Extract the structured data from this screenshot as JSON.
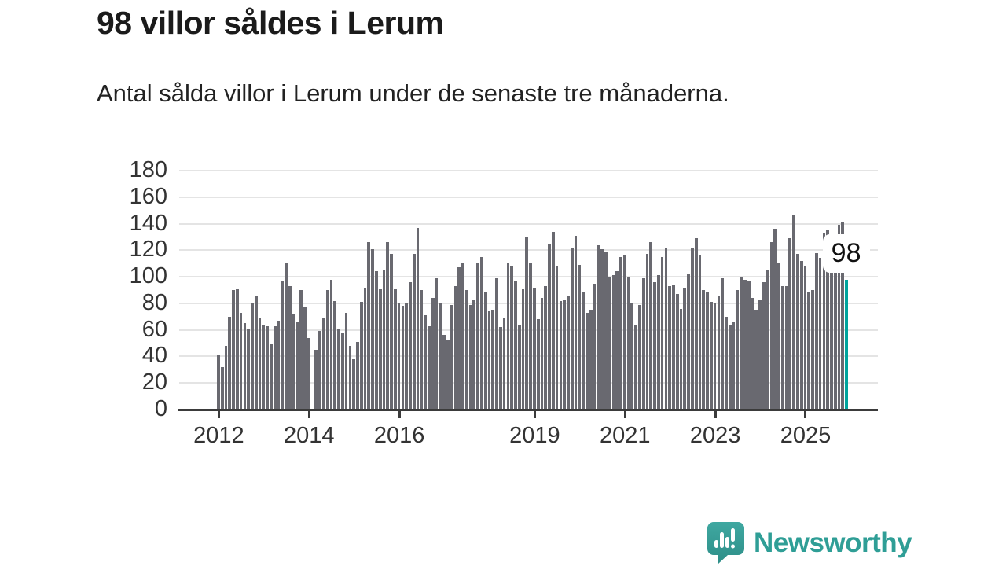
{
  "header": {
    "title": "98 villor såldes i Lerum",
    "subtitle": "Antal sålda villor i Lerum under de senaste tre månaderna."
  },
  "chart_data": {
    "type": "bar",
    "title": "98 villor såldes i Lerum",
    "subtitle": "Antal sålda villor i Lerum under de senaste tre månaderna.",
    "x_start": "2012-01",
    "x_frequency": "monthly",
    "xlabel": "",
    "ylabel": "",
    "ylim": [
      0,
      180
    ],
    "grid": "horizontal",
    "yticks": [
      0,
      20,
      40,
      60,
      80,
      100,
      120,
      140,
      160,
      180
    ],
    "xticks": [
      {
        "label": "2012",
        "month_index": 0
      },
      {
        "label": "2014",
        "month_index": 24
      },
      {
        "label": "2016",
        "month_index": 48
      },
      {
        "label": "2019",
        "month_index": 84
      },
      {
        "label": "2021",
        "month_index": 108
      },
      {
        "label": "2023",
        "month_index": 132
      },
      {
        "label": "2025",
        "month_index": 156
      }
    ],
    "values": [
      41,
      32,
      48,
      70,
      90,
      91,
      73,
      65,
      61,
      80,
      86,
      69,
      64,
      63,
      50,
      63,
      67,
      97,
      110,
      93,
      72,
      66,
      90,
      77,
      54,
      null,
      45,
      59,
      69,
      90,
      98,
      82,
      61,
      58,
      73,
      48,
      38,
      51,
      81,
      92,
      126,
      121,
      104,
      91,
      105,
      126,
      117,
      91,
      80,
      78,
      80,
      96,
      117,
      137,
      90,
      71,
      63,
      84,
      99,
      80,
      56,
      53,
      79,
      93,
      107,
      111,
      90,
      79,
      83,
      110,
      115,
      88,
      74,
      75,
      99,
      62,
      69,
      110,
      108,
      97,
      64,
      91,
      130,
      111,
      92,
      68,
      84,
      93,
      125,
      134,
      108,
      82,
      83,
      86,
      122,
      131,
      109,
      88,
      73,
      75,
      95,
      124,
      121,
      119,
      100,
      101,
      104,
      115,
      116,
      100,
      80,
      64,
      79,
      99,
      117,
      126,
      96,
      101,
      115,
      122,
      93,
      94,
      87,
      76,
      92,
      102,
      122,
      129,
      116,
      90,
      89,
      81,
      80,
      86,
      99,
      70,
      64,
      66,
      90,
      100,
      98,
      97,
      84,
      75,
      83,
      96,
      105,
      126,
      136,
      110,
      93,
      93,
      129,
      147,
      117,
      112,
      108,
      89,
      90,
      118,
      114,
      133,
      135,
      117,
      105,
      139,
      141,
      98
    ],
    "missing_months": [
      "2014-02"
    ],
    "highlight": {
      "index": 167,
      "value": 98,
      "label": "98",
      "color": "#00a49d"
    },
    "bar_color": "#696970",
    "axis_color": "#3b3b3b",
    "gridline_color": "#e4e4e4",
    "tick_label_color": "#333333",
    "legend": "none"
  },
  "branding": {
    "wordmark": "Newsworthy",
    "logo_icon": "newsworthy-bar-chart-speech-bubble",
    "color": "#2f9e96"
  }
}
